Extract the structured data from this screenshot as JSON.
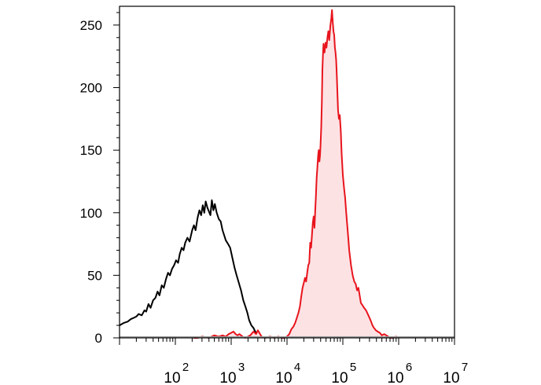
{
  "chart_data": {
    "type": "area",
    "title": "",
    "xlabel": "",
    "ylabel": "",
    "x_scale": "log",
    "xlim": [
      10,
      10000000
    ],
    "ylim": [
      0,
      265
    ],
    "grid": false,
    "y_ticks": [
      {
        "value": 0,
        "label": "0"
      },
      {
        "value": 50,
        "label": "50"
      },
      {
        "value": 100,
        "label": "100"
      },
      {
        "value": 150,
        "label": "150"
      },
      {
        "value": 200,
        "label": "200"
      },
      {
        "value": 250,
        "label": "250"
      }
    ],
    "x_ticks": [
      {
        "value": 100,
        "base": "10",
        "exp": "2"
      },
      {
        "value": 1000,
        "base": "10",
        "exp": "3"
      },
      {
        "value": 10000,
        "base": "10",
        "exp": "4"
      },
      {
        "value": 100000,
        "base": "10",
        "exp": "5"
      },
      {
        "value": 1000000,
        "base": "10",
        "exp": "6"
      },
      {
        "value": 10000000,
        "base": "10",
        "exp": "7"
      }
    ],
    "series": [
      {
        "color": "#000000",
        "fill": "none",
        "points": [
          [
            10,
            10
          ],
          [
            12,
            12
          ],
          [
            14,
            13
          ],
          [
            16,
            15
          ],
          [
            18,
            16
          ],
          [
            20,
            17
          ],
          [
            22,
            19
          ],
          [
            25,
            18
          ],
          [
            28,
            22
          ],
          [
            30,
            21
          ],
          [
            33,
            27
          ],
          [
            36,
            24
          ],
          [
            40,
            30
          ],
          [
            44,
            32
          ],
          [
            48,
            37
          ],
          [
            52,
            34
          ],
          [
            57,
            42
          ],
          [
            62,
            40
          ],
          [
            68,
            47
          ],
          [
            74,
            52
          ],
          [
            80,
            50
          ],
          [
            87,
            55
          ],
          [
            95,
            58
          ],
          [
            103,
            62
          ],
          [
            112,
            60
          ],
          [
            120,
            67
          ],
          [
            130,
            72
          ],
          [
            140,
            70
          ],
          [
            150,
            76
          ],
          [
            165,
            80
          ],
          [
            180,
            77
          ],
          [
            200,
            86
          ],
          [
            215,
            90
          ],
          [
            230,
            86
          ],
          [
            250,
            96
          ],
          [
            270,
            102
          ],
          [
            290,
            98
          ],
          [
            310,
            106
          ],
          [
            330,
            100
          ],
          [
            350,
            109
          ],
          [
            375,
            104
          ],
          [
            400,
            101
          ],
          [
            425,
            98
          ],
          [
            450,
            110
          ],
          [
            480,
            102
          ],
          [
            510,
            107
          ],
          [
            550,
            100
          ],
          [
            600,
            95
          ],
          [
            650,
            93
          ],
          [
            700,
            86
          ],
          [
            750,
            82
          ],
          [
            800,
            78
          ],
          [
            880,
            75
          ],
          [
            960,
            72
          ],
          [
            1050,
            64
          ],
          [
            1150,
            56
          ],
          [
            1250,
            50
          ],
          [
            1370,
            44
          ],
          [
            1500,
            38
          ],
          [
            1650,
            30
          ],
          [
            1800,
            25
          ],
          [
            1950,
            20
          ],
          [
            2100,
            14
          ],
          [
            2300,
            10
          ],
          [
            2500,
            8
          ],
          [
            2700,
            5
          ],
          [
            2900,
            3
          ]
        ]
      },
      {
        "color": "#e8141c",
        "fill": "#fde2e4",
        "points": [
          [
            210,
            0
          ],
          [
            250,
            0
          ],
          [
            300,
            1
          ],
          [
            400,
            0
          ],
          [
            500,
            2
          ],
          [
            600,
            1
          ],
          [
            700,
            2
          ],
          [
            800,
            1
          ],
          [
            900,
            3
          ],
          [
            1000,
            4
          ],
          [
            1100,
            5
          ],
          [
            1200,
            3
          ],
          [
            1300,
            2
          ],
          [
            1400,
            3
          ],
          [
            1500,
            2
          ],
          [
            1600,
            1
          ],
          [
            1800,
            0
          ],
          [
            2000,
            1
          ],
          [
            2200,
            2
          ],
          [
            2500,
            5
          ],
          [
            2800,
            3
          ],
          [
            3000,
            6
          ],
          [
            3500,
            1
          ],
          [
            4000,
            0
          ],
          [
            5000,
            1
          ],
          [
            6000,
            0
          ],
          [
            7000,
            1
          ],
          [
            8000,
            0
          ],
          [
            9000,
            0
          ],
          [
            10000,
            1
          ],
          [
            11000,
            3
          ],
          [
            12000,
            7
          ],
          [
            13000,
            9
          ],
          [
            14000,
            12
          ],
          [
            15000,
            16
          ],
          [
            16000,
            20
          ],
          [
            17000,
            25
          ],
          [
            18000,
            33
          ],
          [
            19000,
            40
          ],
          [
            20000,
            44
          ],
          [
            21000,
            48
          ],
          [
            22000,
            45
          ],
          [
            23000,
            52
          ],
          [
            24000,
            58
          ],
          [
            25000,
            60
          ],
          [
            26000,
            76
          ],
          [
            27000,
            72
          ],
          [
            28000,
            82
          ],
          [
            29000,
            92
          ],
          [
            30000,
            97
          ],
          [
            31000,
            88
          ],
          [
            32000,
            102
          ],
          [
            33000,
            114
          ],
          [
            34000,
            128
          ],
          [
            35000,
            136
          ],
          [
            36000,
            145
          ],
          [
            37000,
            150
          ],
          [
            38000,
            141
          ],
          [
            39000,
            146
          ],
          [
            40000,
            155
          ],
          [
            41000,
            168
          ],
          [
            42000,
            188
          ],
          [
            43000,
            214
          ],
          [
            44000,
            226
          ],
          [
            45000,
            235
          ],
          [
            47000,
            228
          ],
          [
            49000,
            236
          ],
          [
            51000,
            232
          ],
          [
            53000,
            240
          ],
          [
            55000,
            245
          ],
          [
            57000,
            238
          ],
          [
            60000,
            250
          ],
          [
            62000,
            255
          ],
          [
            64000,
            262
          ],
          [
            66000,
            252
          ],
          [
            68000,
            245
          ],
          [
            70000,
            242
          ],
          [
            72000,
            232
          ],
          [
            74000,
            228
          ],
          [
            76000,
            222
          ],
          [
            78000,
            210
          ],
          [
            80000,
            196
          ],
          [
            82000,
            182
          ],
          [
            85000,
            175
          ],
          [
            88000,
            178
          ],
          [
            92000,
            165
          ],
          [
            95000,
            148
          ],
          [
            100000,
            130
          ],
          [
            105000,
            120
          ],
          [
            110000,
            112
          ],
          [
            115000,
            100
          ],
          [
            120000,
            90
          ],
          [
            125000,
            80
          ],
          [
            130000,
            70
          ],
          [
            140000,
            58
          ],
          [
            150000,
            50
          ],
          [
            160000,
            45
          ],
          [
            170000,
            43
          ],
          [
            180000,
            38
          ],
          [
            190000,
            40
          ],
          [
            200000,
            34
          ],
          [
            210000,
            28
          ],
          [
            225000,
            26
          ],
          [
            240000,
            24
          ],
          [
            260000,
            22
          ],
          [
            280000,
            19
          ],
          [
            300000,
            16
          ],
          [
            320000,
            13
          ],
          [
            340000,
            10
          ],
          [
            360000,
            8
          ],
          [
            390000,
            6
          ],
          [
            420000,
            5
          ],
          [
            460000,
            4
          ],
          [
            500000,
            2
          ],
          [
            550000,
            3
          ],
          [
            600000,
            2
          ],
          [
            650000,
            1
          ],
          [
            700000,
            0
          ],
          [
            800000,
            0
          ],
          [
            900000,
            1
          ],
          [
            1000000,
            0
          ]
        ]
      }
    ]
  }
}
